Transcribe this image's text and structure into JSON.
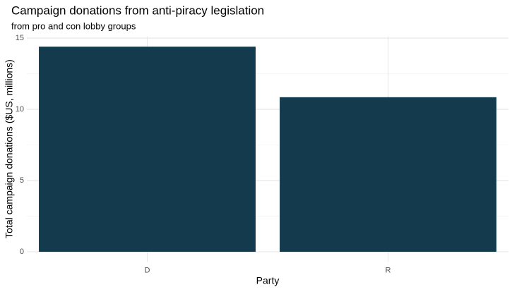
{
  "chart_data": {
    "type": "bar",
    "title": "Campaign donations from anti-piracy legislation",
    "subtitle": "from pro and con lobby groups",
    "x_label": "Party",
    "y_label": "Total campaign donations ($US, millions)",
    "categories": [
      "D",
      "R"
    ],
    "values": [
      14.4,
      10.85
    ],
    "color": "#133a4d",
    "ylim": [
      -0.72,
      15.12
    ],
    "yticks": [
      0,
      5,
      10,
      15
    ],
    "y_minor_ticks": [
      2.5,
      7.5,
      12.5
    ],
    "grid": true
  }
}
